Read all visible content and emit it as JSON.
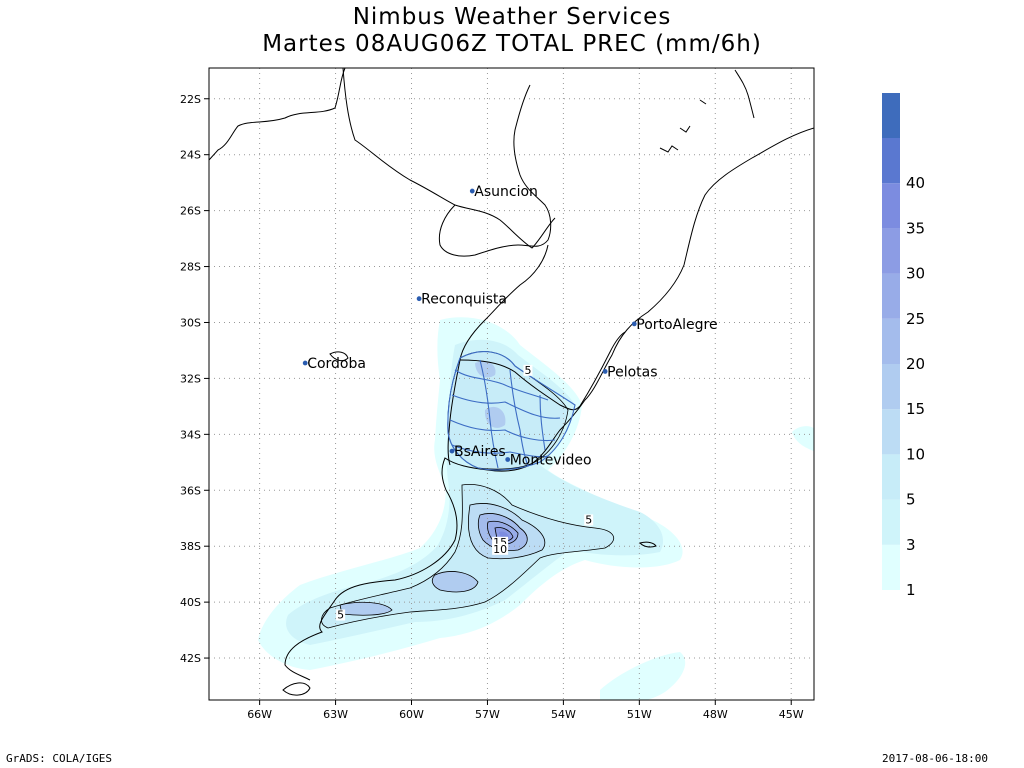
{
  "title": {
    "line1": "Nimbus Weather Services",
    "line2": "Martes 08AUG06Z TOTAL PREC (mm/6h)"
  },
  "footer": {
    "left": "GrADS: COLA/IGES",
    "right": "2017-08-06-18:00"
  },
  "map": {
    "lon_range": [
      -68,
      -44.1
    ],
    "lat_range": [
      -43.5,
      -20.9
    ],
    "lon_ticks": [
      {
        "value": -66,
        "label": "66W"
      },
      {
        "value": -63,
        "label": "63W"
      },
      {
        "value": -60,
        "label": "60W"
      },
      {
        "value": -57,
        "label": "57W"
      },
      {
        "value": -54,
        "label": "54W"
      },
      {
        "value": -51,
        "label": "51W"
      },
      {
        "value": -48,
        "label": "48W"
      },
      {
        "value": -45,
        "label": "45W"
      }
    ],
    "lat_ticks": [
      {
        "value": -22,
        "label": "22S"
      },
      {
        "value": -24,
        "label": "24S"
      },
      {
        "value": -26,
        "label": "26S"
      },
      {
        "value": -28,
        "label": "28S"
      },
      {
        "value": -30,
        "label": "30S"
      },
      {
        "value": -32,
        "label": "32S"
      },
      {
        "value": -34,
        "label": "34S"
      },
      {
        "value": -36,
        "label": "36S"
      },
      {
        "value": -38,
        "label": "38S"
      },
      {
        "value": -40,
        "label": "40S"
      },
      {
        "value": -42,
        "label": "42S"
      }
    ],
    "grid": true,
    "cities": [
      {
        "name": "Asuncion",
        "lon": -57.6,
        "lat": -25.3
      },
      {
        "name": "Reconquista",
        "lon": -59.7,
        "lat": -29.15
      },
      {
        "name": "PortoAlegre",
        "lon": -51.2,
        "lat": -30.05
      },
      {
        "name": "Cordoba",
        "lon": -64.2,
        "lat": -31.45
      },
      {
        "name": "Pelotas",
        "lon": -52.35,
        "lat": -31.75
      },
      {
        "name": "BsAires",
        "lon": -58.4,
        "lat": -34.6
      },
      {
        "name": "Montevideo",
        "lon": -56.2,
        "lat": -34.9
      }
    ],
    "contour_labels": [
      {
        "text": "5",
        "lon": -55.4,
        "lat": -31.8
      },
      {
        "text": "5",
        "lon": -53.0,
        "lat": -37.15
      },
      {
        "text": "15",
        "lon": -56.5,
        "lat": -37.95
      },
      {
        "text": "10",
        "lon": -56.5,
        "lat": -38.2
      },
      {
        "text": "5",
        "lon": -62.8,
        "lat": -40.55
      }
    ]
  },
  "colorbar": {
    "levels": [
      {
        "label": "1",
        "color": "#e0ffff"
      },
      {
        "label": "3",
        "color": "#cff4fa"
      },
      {
        "label": "5",
        "color": "#c7ecf8"
      },
      {
        "label": "10",
        "color": "#bcdcf4"
      },
      {
        "label": "15",
        "color": "#b0ccf0"
      },
      {
        "label": "20",
        "color": "#a4bcec"
      },
      {
        "label": "25",
        "color": "#98ace8"
      },
      {
        "label": "30",
        "color": "#8c9ce4"
      },
      {
        "label": "35",
        "color": "#7c8ce0"
      },
      {
        "label": "40",
        "color": "#5a78d0"
      }
    ],
    "top_color": "#3e6cbc"
  }
}
